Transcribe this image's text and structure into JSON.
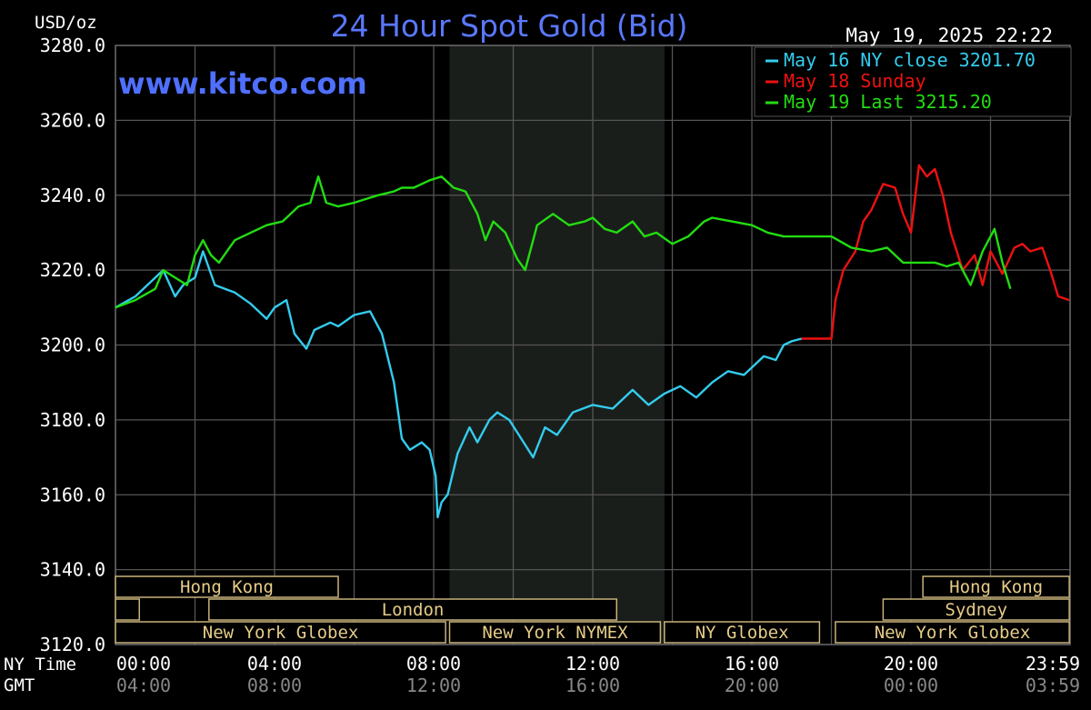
{
  "chart_data": {
    "type": "line",
    "title": "24 Hour Spot Gold (Bid)",
    "unit_label": "USD/oz",
    "watermark": "www.kitco.com",
    "datetime": "May 19, 2025 22:22",
    "x_axis": {
      "range_hours": [
        0,
        24
      ],
      "row1_label": "NY Time",
      "row2_label": "GMT",
      "ticks_ny": [
        "00:00",
        "04:00",
        "08:00",
        "12:00",
        "16:00",
        "20:00",
        "23:59"
      ],
      "ticks_gmt": [
        "04:00",
        "08:00",
        "12:00",
        "16:00",
        "20:00",
        "00:00",
        "03:59"
      ],
      "tick_hours": [
        0,
        4,
        8,
        12,
        16,
        20,
        23.98
      ]
    },
    "y_axis": {
      "range": [
        3120,
        3280
      ],
      "ticks": [
        "3280.0",
        "3260.0",
        "3240.0",
        "3220.0",
        "3200.0",
        "3180.0",
        "3160.0",
        "3140.0",
        "3120.0"
      ],
      "tick_values": [
        3280,
        3260,
        3240,
        3220,
        3200,
        3180,
        3160,
        3140,
        3120
      ]
    },
    "grid": true,
    "shaded_session_hours": [
      8.4,
      13.8
    ],
    "legend_position": "top-right",
    "legend": [
      {
        "text": "May 16 NY close 3201.70",
        "color": "#33ccee"
      },
      {
        "text": "May 18 Sunday",
        "color": "#ee1111"
      },
      {
        "text": "May 19 Last 3215.20",
        "color": "#22dd11"
      }
    ],
    "series": [
      {
        "name": "May 16 NY close 3201.70",
        "color": "#33ccee",
        "x": [
          0,
          0.5,
          1,
          1.2,
          1.5,
          1.7,
          2,
          2.2,
          2.5,
          3,
          3.4,
          3.8,
          4,
          4.3,
          4.5,
          4.8,
          5,
          5.4,
          5.6,
          6,
          6.4,
          6.7,
          7,
          7.2,
          7.4,
          7.7,
          7.9,
          8.05,
          8.1,
          8.2,
          8.35,
          8.6,
          8.9,
          9.1,
          9.4,
          9.6,
          9.9,
          10.2,
          10.5,
          10.8,
          11.1,
          11.5,
          12,
          12.5,
          13,
          13.4,
          13.8,
          14.2,
          14.6,
          15,
          15.4,
          15.8,
          16,
          16.3,
          16.6,
          16.8,
          17,
          17.25
        ],
        "values": [
          3210,
          3213,
          3218,
          3220,
          3213,
          3216,
          3218,
          3225,
          3216,
          3214,
          3211,
          3207,
          3210,
          3212,
          3203,
          3199,
          3204,
          3206,
          3205,
          3208,
          3209,
          3203,
          3190,
          3175,
          3172,
          3174,
          3172,
          3165,
          3154,
          3158,
          3160,
          3171,
          3178,
          3174,
          3180,
          3182,
          3180,
          3175,
          3170,
          3178,
          3176,
          3182,
          3184,
          3183,
          3188,
          3184,
          3187,
          3189,
          3186,
          3190,
          3193,
          3192,
          3194,
          3197,
          3196,
          3200,
          3201,
          3201.7
        ]
      },
      {
        "name": "May 18 Sunday",
        "color": "#ee1111",
        "x": [
          17.25,
          18,
          18.1,
          18.3,
          18.6,
          18.8,
          19,
          19.3,
          19.6,
          19.8,
          20,
          20.2,
          20.4,
          20.6,
          20.8,
          21,
          21.3,
          21.6,
          21.8,
          22,
          22.3,
          22.6,
          22.8,
          23,
          23.3,
          23.5,
          23.7,
          23.98
        ],
        "values": [
          3201.7,
          3201.7,
          3212,
          3220,
          3225,
          3233,
          3236,
          3243,
          3242,
          3235,
          3230,
          3248,
          3245,
          3247,
          3240,
          3230,
          3220,
          3224,
          3216,
          3225,
          3219,
          3226,
          3227,
          3225,
          3226,
          3220,
          3213,
          3212
        ]
      },
      {
        "name": "May 19 Last 3215.20",
        "color": "#22dd11",
        "x": [
          0,
          0.5,
          1,
          1.2,
          1.5,
          1.8,
          2,
          2.2,
          2.4,
          2.6,
          3,
          3.4,
          3.8,
          4.2,
          4.6,
          4.9,
          5.1,
          5.3,
          5.6,
          6,
          6.3,
          6.6,
          7,
          7.2,
          7.5,
          7.9,
          8.2,
          8.5,
          8.8,
          9.1,
          9.3,
          9.5,
          9.8,
          10.1,
          10.3,
          10.6,
          11,
          11.4,
          11.8,
          12,
          12.3,
          12.6,
          13,
          13.3,
          13.6,
          14,
          14.4,
          14.8,
          15,
          15.5,
          16,
          16.4,
          16.8,
          17,
          17.5,
          18,
          18.5,
          19,
          19.4,
          19.8,
          20.2,
          20.6,
          20.9,
          21.2,
          21.5,
          21.8,
          22.1,
          22.3,
          22.5
        ],
        "values": [
          3210,
          3212,
          3215,
          3220,
          3218,
          3216,
          3224,
          3228,
          3224,
          3222,
          3228,
          3230,
          3232,
          3233,
          3237,
          3238,
          3245,
          3238,
          3237,
          3238,
          3239,
          3240,
          3241,
          3242,
          3242,
          3244,
          3245,
          3242,
          3241,
          3235,
          3228,
          3233,
          3230,
          3223,
          3220,
          3232,
          3235,
          3232,
          3233,
          3234,
          3231,
          3230,
          3233,
          3229,
          3230,
          3227,
          3229,
          3233,
          3234,
          3233,
          3232,
          3230,
          3229,
          3229,
          3229,
          3229,
          3226,
          3225,
          3226,
          3222,
          3222,
          3222,
          3221,
          3222,
          3216,
          3225,
          3231,
          3222,
          3215
        ]
      }
    ],
    "sessions": [
      {
        "label": "Hong Kong",
        "row": 0,
        "start": 0,
        "end": 5.6
      },
      {
        "label": "",
        "row": 1,
        "start": 0,
        "end": 0.6
      },
      {
        "label": "London",
        "row": 1,
        "start": 2.35,
        "end": 12.6
      },
      {
        "label": "New York Globex",
        "row": 2,
        "start": 0,
        "end": 8.3
      },
      {
        "label": "New York NYMEX",
        "row": 2,
        "start": 8.4,
        "end": 13.7
      },
      {
        "label": "NY Globex",
        "row": 2,
        "start": 13.8,
        "end": 17.7
      },
      {
        "label": "Hong Kong",
        "row": 0,
        "start": 20.3,
        "end": 23.98
      },
      {
        "label": "Sydney",
        "row": 1,
        "start": 19.3,
        "end": 23.98
      },
      {
        "label": "New York Globex",
        "row": 2,
        "start": 18.1,
        "end": 23.98
      }
    ]
  }
}
